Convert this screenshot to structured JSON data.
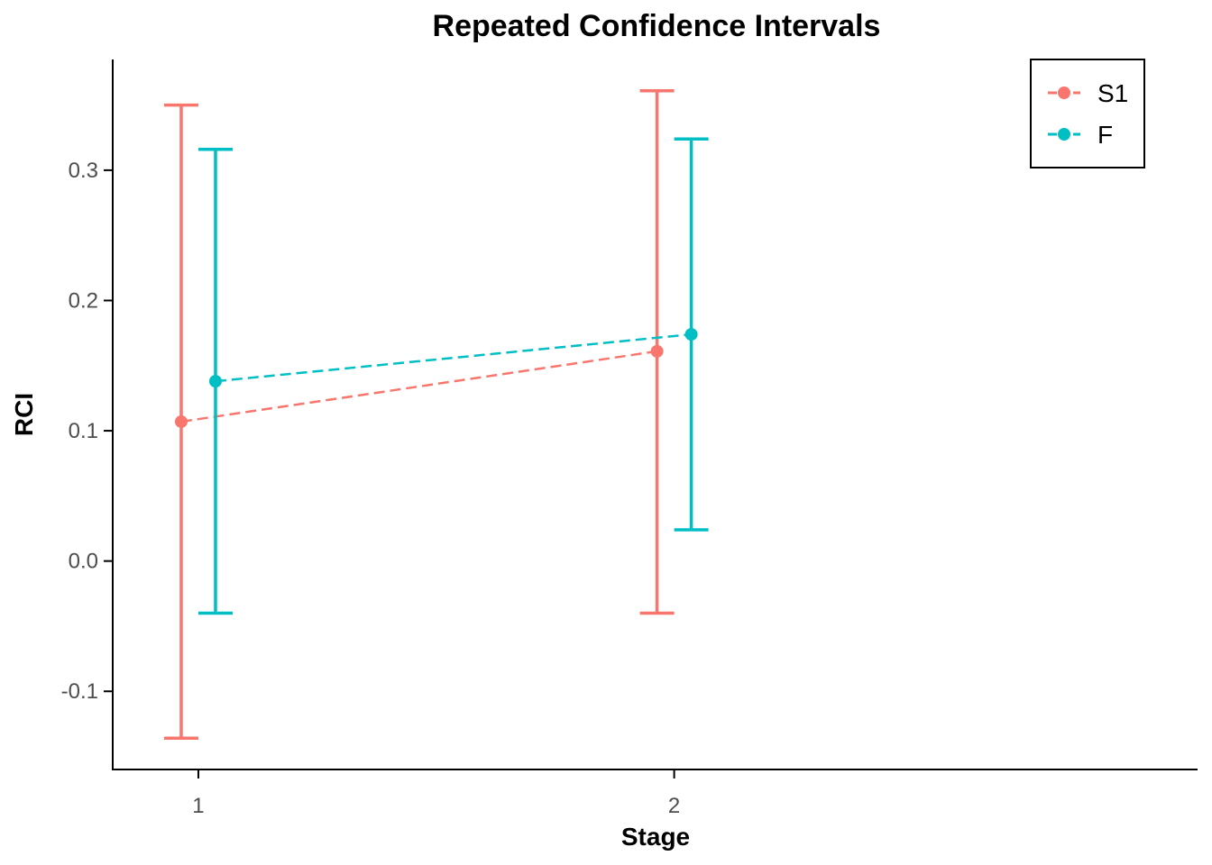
{
  "chart_data": {
    "type": "line",
    "title": "Repeated Confidence Intervals",
    "xlabel": "Stage",
    "ylabel": "RCI",
    "x_ticks": [
      "1",
      "2"
    ],
    "y_ticks": [
      -0.1,
      0.0,
      0.1,
      0.2,
      0.3
    ],
    "y_tick_labels": [
      "-0.1",
      "0.0",
      "0.1",
      "0.2",
      "0.3"
    ],
    "xlim": [
      0.82,
      3.1
    ],
    "ylim": [
      -0.16,
      0.385
    ],
    "grid": false,
    "legend_position": "top-right",
    "line_style": "dashed",
    "series": [
      {
        "name": "S1",
        "color": "#F8766D",
        "x": [
          1,
          2
        ],
        "estimate": [
          0.107,
          0.161
        ],
        "lower": [
          -0.136,
          -0.04
        ],
        "upper": [
          0.35,
          0.361
        ]
      },
      {
        "name": "F",
        "color": "#00BFC4",
        "x": [
          1,
          2
        ],
        "estimate": [
          0.138,
          0.174
        ],
        "lower": [
          -0.04,
          0.024
        ],
        "upper": [
          0.316,
          0.324
        ]
      }
    ]
  }
}
